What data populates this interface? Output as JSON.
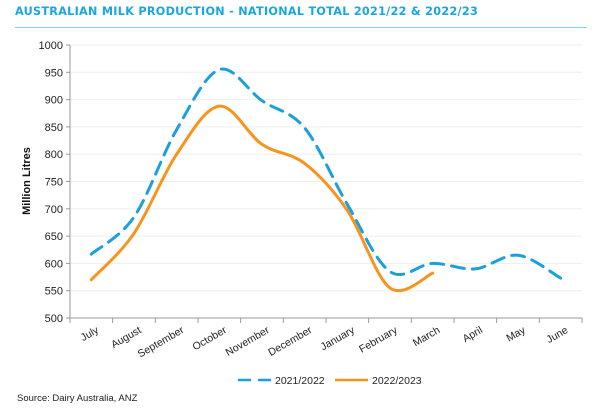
{
  "header": {
    "title": "AUSTRALIAN MILK PRODUCTION - NATIONAL TOTAL 2021/22 & 2022/23"
  },
  "footer": {
    "source": "Source: Dairy Australia, ANZ"
  },
  "colors": {
    "title": "#1aa6de",
    "series_2021": "#1aa0dc",
    "series_2022": "#f7941d",
    "grid": "#eeeeee",
    "axis": "#999999"
  },
  "chart_data": {
    "type": "line",
    "title": "AUSTRALIAN MILK PRODUCTION - NATIONAL TOTAL 2021/22 & 2022/23",
    "xlabel": "",
    "ylabel": "Million Litres",
    "ylim": [
      500,
      1000
    ],
    "yticks": [
      500,
      550,
      600,
      650,
      700,
      750,
      800,
      850,
      900,
      950,
      1000
    ],
    "grid": true,
    "legend_position": "bottom",
    "categories": [
      "July",
      "August",
      "September",
      "October",
      "November",
      "December",
      "January",
      "February",
      "March",
      "April",
      "May",
      "June"
    ],
    "series": [
      {
        "name": "2021/2022",
        "style": "dashed",
        "color": "#1aa0dc",
        "values": [
          617,
          685,
          845,
          955,
          898,
          848,
          708,
          585,
          600,
          590,
          615,
          573
        ]
      },
      {
        "name": "2022/2023",
        "style": "solid",
        "color": "#f7941d",
        "values": [
          570,
          655,
          800,
          888,
          818,
          783,
          697,
          555,
          582
        ]
      }
    ]
  }
}
